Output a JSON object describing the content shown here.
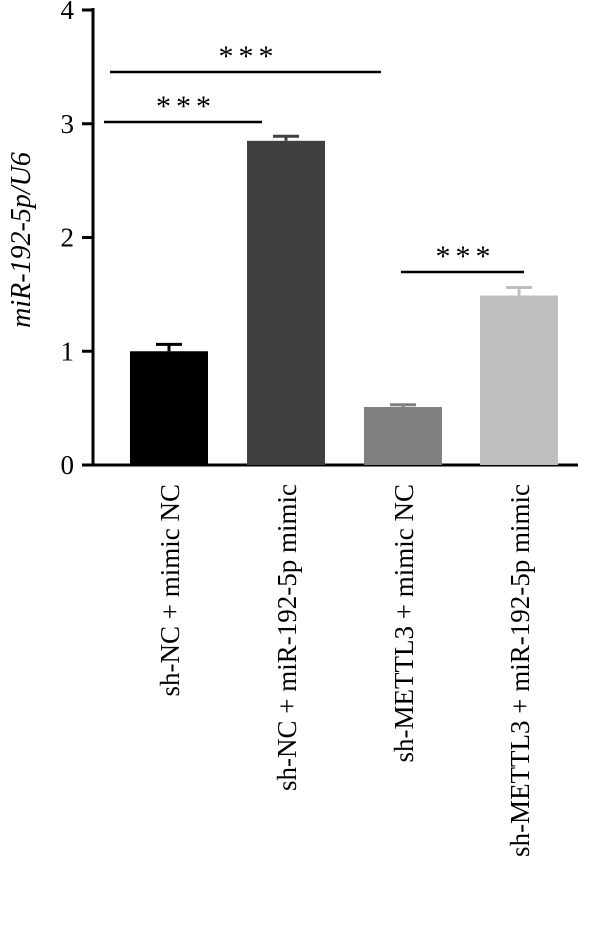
{
  "chart_data": {
    "type": "bar",
    "title": "",
    "xlabel": "",
    "ylabel": "miR-192-5p/U6",
    "ylim": [
      0,
      4
    ],
    "yticks": [
      0,
      1,
      2,
      3,
      4
    ],
    "grid": false,
    "categories": [
      "sh-NC + mimic NC",
      "sh-NC + miR-192-5p mimic",
      "sh-METTL3 + mimic NC",
      "sh-METTL3 + miR-192-5p mimic"
    ],
    "values": [
      1.0,
      2.85,
      0.51,
      1.49
    ],
    "errors": [
      0.06,
      0.04,
      0.02,
      0.07
    ],
    "colors": [
      "#000000",
      "#404040",
      "#808080",
      "#bfbfbf"
    ],
    "significance": [
      {
        "from": 0,
        "to": 1,
        "label": "***"
      },
      {
        "from": 0,
        "to": 2,
        "label": "***"
      },
      {
        "from": 2,
        "to": 3,
        "label": "***"
      }
    ]
  }
}
